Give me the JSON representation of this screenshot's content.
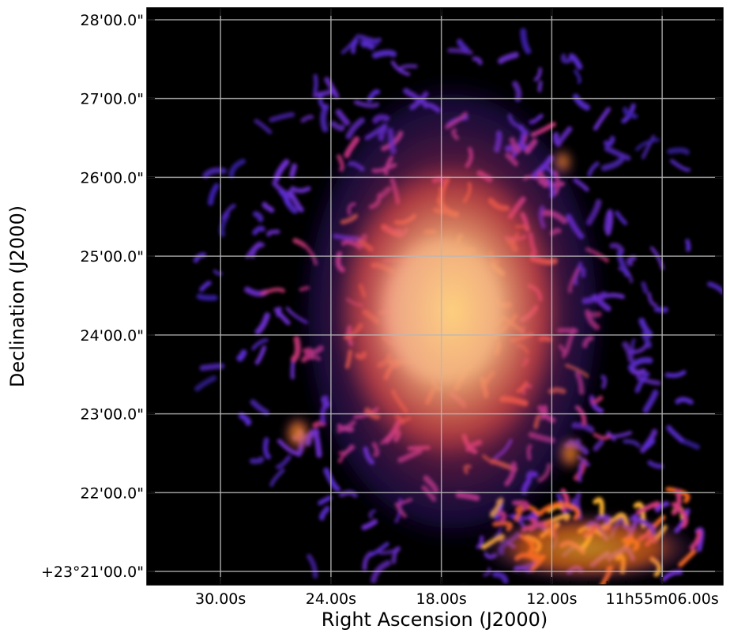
{
  "chart_data": {
    "type": "heatmap",
    "title": "",
    "xlabel": "Right Ascension (J2000)",
    "ylabel": "Declination (J2000)",
    "grid": true,
    "colormap": "inferno-like (black → purple → orange → yellow → white)",
    "colormap_stops": [
      "#000000",
      "#3b1fa8",
      "#6e2fd0",
      "#d13a7a",
      "#f4661e",
      "#fdb32f",
      "#fff3a8",
      "#ffffff"
    ],
    "background_color": "#000000",
    "grid_color": "#b8b8b8",
    "x_ticks": [
      {
        "value_s": 30,
        "label": "30.00s"
      },
      {
        "value_s": 24,
        "label": "24.00s"
      },
      {
        "value_s": 18,
        "label": "18.00s"
      },
      {
        "value_s": 12,
        "label": "12.00s"
      },
      {
        "value_s": 6,
        "label": "11h55m06.00s"
      }
    ],
    "x_range_s": [
      34,
      2.7
    ],
    "y_ticks": [
      {
        "value_arcmin": 28,
        "label": "28'00.0\""
      },
      {
        "value_arcmin": 27,
        "label": "27'00.0\""
      },
      {
        "value_arcmin": 26,
        "label": "26'00.0\""
      },
      {
        "value_arcmin": 25,
        "label": "25'00.0\""
      },
      {
        "value_arcmin": 24,
        "label": "24'00.0\""
      },
      {
        "value_arcmin": 23,
        "label": "23'00.0\""
      },
      {
        "value_arcmin": 22,
        "label": "22'00.0\""
      },
      {
        "value_arcmin": 21,
        "label": "+23°21'00.0\""
      }
    ],
    "y_range_arcmin": [
      20.83,
      28.15
    ],
    "features": [
      {
        "name": "core",
        "ra_s": 18.0,
        "dec_arcmin": 24.3,
        "ra_halfwidth_s": 3.6,
        "dec_halfwidth_arcmin": 1.0,
        "level": 1.0
      },
      {
        "name": "inner-halo",
        "ra_s": 17.6,
        "dec_arcmin": 24.3,
        "ra_halfwidth_s": 6.2,
        "dec_halfwidth_arcmin": 1.9,
        "level": 0.75
      },
      {
        "name": "outer-halo",
        "ra_s": 17.4,
        "dec_arcmin": 24.3,
        "ra_halfwidth_s": 8.8,
        "dec_halfwidth_arcmin": 3.1,
        "level": 0.45
      },
      {
        "name": "blob-sw",
        "ra_s": 25.8,
        "dec_arcmin": 22.75,
        "ra_halfwidth_s": 0.7,
        "dec_halfwidth_arcmin": 0.22,
        "level": 0.65
      },
      {
        "name": "blob-se",
        "ra_s": 11.0,
        "dec_arcmin": 22.5,
        "ra_halfwidth_s": 0.6,
        "dec_halfwidth_arcmin": 0.2,
        "level": 0.6
      },
      {
        "name": "blob-ne",
        "ra_s": 11.4,
        "dec_arcmin": 26.2,
        "ra_halfwidth_s": 0.5,
        "dec_halfwidth_arcmin": 0.15,
        "level": 0.6
      },
      {
        "name": "southern-filaments",
        "ra_s": 10.0,
        "dec_arcmin": 21.3,
        "ra_halfwidth_s": 6.0,
        "dec_halfwidth_arcmin": 0.45,
        "level": 0.55
      }
    ]
  }
}
